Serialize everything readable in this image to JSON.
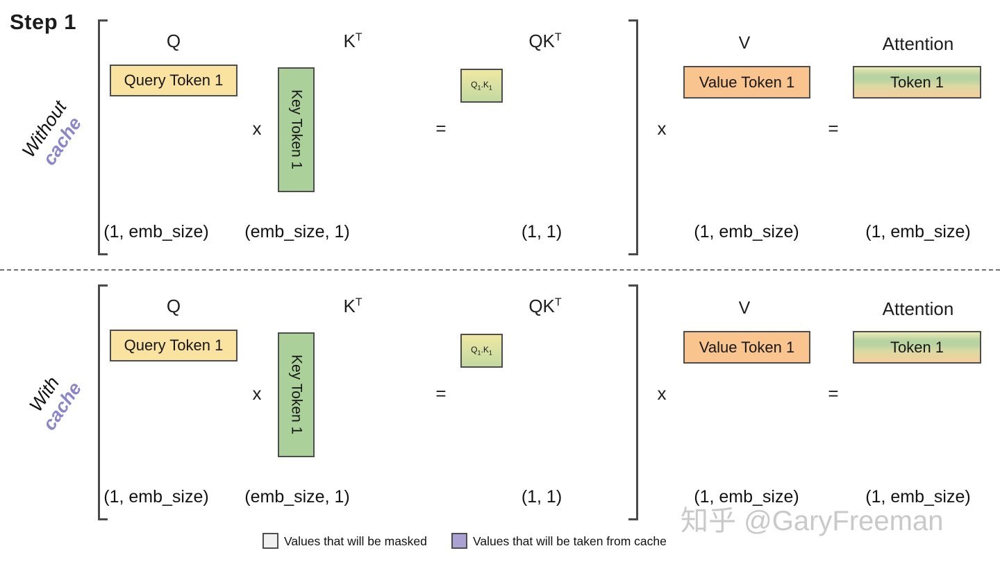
{
  "title": "Step 1",
  "colors": {
    "yellow": "#fae3a1",
    "green": "#abd09a",
    "orange": "#f9c48d",
    "purple_accent": "#8b85c9",
    "legend_masked": "#f1f0f0",
    "legend_cache": "#aba2d3",
    "border": "#4d4d4d",
    "bracket": "#4a4a4a",
    "watermark": "#c9c9c9",
    "qk_top": "#f0e8a2",
    "qk_bottom": "#c2d9a1",
    "attn_top": "#ece9b2",
    "attn_green": "#b9d3a0",
    "attn_mid": "#ddd9a2",
    "attn_bottom": "#f2d0a0"
  },
  "rows": [
    {
      "label_main": "Without",
      "label_accent": "cache",
      "q_header": "Q",
      "query_box": "Query Token 1",
      "k_header_base": "K",
      "k_header_sup": "T",
      "key_box": "Key Token 1",
      "multiply": "x",
      "equals": "=",
      "qk_header_base": "QK",
      "qk_header_sup": "T",
      "qk_cell": {
        "q": "Q",
        "q_sub": "1",
        "dot": ".",
        "k": "K",
        "k_sub": "1"
      },
      "v_header": "V",
      "value_box": "Value Token 1",
      "multiply2": "x",
      "equals2": "=",
      "attention_header": "Attention",
      "attention_box": "Token 1",
      "dims": {
        "q": "(1, emb_size)",
        "k": "(emb_size, 1)",
        "qk": "(1, 1)",
        "v": "(1, emb_size)",
        "attention": "(1, emb_size)"
      }
    },
    {
      "label_main": "With",
      "label_accent": "cache",
      "q_header": "Q",
      "query_box": "Query Token 1",
      "k_header_base": "K",
      "k_header_sup": "T",
      "key_box": "Key Token 1",
      "multiply": "x",
      "equals": "=",
      "qk_header_base": "QK",
      "qk_header_sup": "T",
      "qk_cell": {
        "q": "Q",
        "q_sub": "1",
        "dot": ".",
        "k": "K",
        "k_sub": "1"
      },
      "v_header": "V",
      "value_box": "Value Token 1",
      "multiply2": "x",
      "equals2": "=",
      "attention_header": "Attention",
      "attention_box": "Token 1",
      "dims": {
        "q": "(1, emb_size)",
        "k": "(emb_size, 1)",
        "qk": "(1, 1)",
        "v": "(1, emb_size)",
        "attention": "(1, emb_size)"
      }
    }
  ],
  "legend": [
    {
      "label": "Values that will be masked"
    },
    {
      "label": "Values that will be taken from cache"
    }
  ],
  "watermark": "知乎 @GaryFreeman"
}
